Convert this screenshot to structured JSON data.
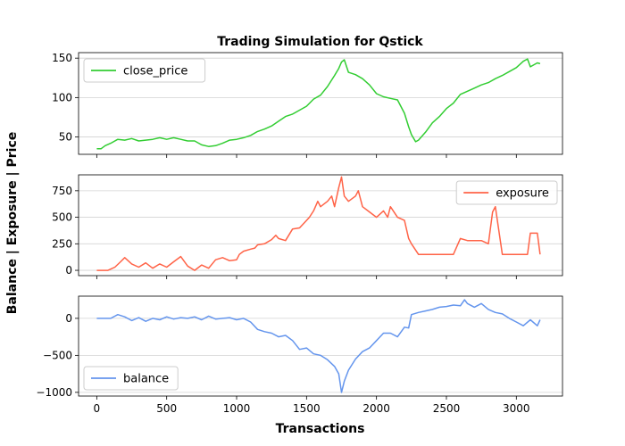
{
  "chart_data": {
    "type": "line",
    "title": "Trading Simulation for Qstick",
    "xlabel": "Transactions",
    "ylabel": "Balance | Exposure | Price",
    "xlim": [
      -130,
      3330
    ],
    "xticks": [
      0,
      500,
      1000,
      1500,
      2000,
      2500,
      3000
    ],
    "grid": "horizontal",
    "subplots": [
      {
        "series_name": "close_price",
        "color": "#32cd32",
        "legend_position": "upper-left",
        "ylim": [
          28,
          157
        ],
        "yticks": [
          50,
          100,
          150
        ],
        "x": [
          0,
          30,
          60,
          100,
          150,
          200,
          250,
          300,
          350,
          400,
          450,
          500,
          550,
          600,
          650,
          700,
          750,
          800,
          850,
          900,
          950,
          1000,
          1050,
          1100,
          1150,
          1200,
          1250,
          1300,
          1350,
          1400,
          1450,
          1500,
          1550,
          1600,
          1650,
          1700,
          1730,
          1750,
          1770,
          1800,
          1850,
          1900,
          1950,
          2000,
          2050,
          2100,
          2150,
          2200,
          2230,
          2250,
          2280,
          2300,
          2350,
          2400,
          2450,
          2500,
          2550,
          2600,
          2650,
          2700,
          2750,
          2800,
          2850,
          2900,
          2950,
          3000,
          3050,
          3080,
          3100,
          3150,
          3170
        ],
        "values": [
          35,
          35,
          39,
          42,
          47,
          46,
          48,
          45,
          46,
          47,
          49,
          47,
          49,
          47,
          45,
          45,
          40,
          38,
          39,
          42,
          46,
          47,
          49,
          52,
          57,
          60,
          64,
          70,
          76,
          79,
          84,
          89,
          98,
          103,
          114,
          128,
          137,
          145,
          148,
          132,
          129,
          124,
          116,
          105,
          101,
          99,
          97,
          80,
          63,
          53,
          44,
          46,
          56,
          68,
          76,
          86,
          93,
          104,
          108,
          112,
          116,
          119,
          124,
          128,
          133,
          138,
          146,
          149,
          139,
          144,
          143
        ]
      },
      {
        "series_name": "exposure",
        "color": "#ff6347",
        "legend_position": "upper-right",
        "ylim": [
          -50,
          900
        ],
        "yticks": [
          0,
          250,
          500,
          750
        ],
        "x": [
          0,
          80,
          130,
          170,
          200,
          250,
          300,
          350,
          400,
          450,
          500,
          550,
          600,
          650,
          700,
          750,
          800,
          850,
          900,
          950,
          1000,
          1020,
          1050,
          1100,
          1130,
          1150,
          1200,
          1250,
          1280,
          1300,
          1350,
          1400,
          1450,
          1500,
          1520,
          1550,
          1580,
          1600,
          1650,
          1680,
          1700,
          1730,
          1750,
          1770,
          1800,
          1850,
          1870,
          1900,
          1950,
          2000,
          2050,
          2080,
          2100,
          2150,
          2200,
          2230,
          2250,
          2300,
          2350,
          2400,
          2450,
          2500,
          2550,
          2600,
          2650,
          2700,
          2750,
          2800,
          2830,
          2850,
          2900,
          2950,
          3000,
          3050,
          3080,
          3100,
          3150,
          3170
        ],
        "values": [
          0,
          0,
          30,
          80,
          120,
          60,
          30,
          70,
          20,
          60,
          30,
          80,
          130,
          40,
          0,
          50,
          20,
          100,
          120,
          90,
          100,
          150,
          180,
          200,
          210,
          240,
          250,
          290,
          330,
          300,
          280,
          390,
          400,
          470,
          500,
          560,
          650,
          600,
          650,
          700,
          600,
          780,
          880,
          700,
          650,
          700,
          750,
          600,
          550,
          500,
          560,
          500,
          600,
          500,
          470,
          300,
          250,
          150,
          150,
          150,
          150,
          150,
          150,
          300,
          280,
          280,
          280,
          250,
          550,
          600,
          150,
          150,
          150,
          150,
          150,
          350,
          350,
          150
        ]
      },
      {
        "series_name": "balance",
        "color": "#6495ed",
        "legend_position": "lower-left",
        "ylim": [
          -1050,
          300
        ],
        "yticks": [
          -1000,
          -500,
          0
        ],
        "x": [
          0,
          100,
          150,
          200,
          250,
          300,
          350,
          400,
          450,
          500,
          550,
          600,
          650,
          700,
          750,
          800,
          850,
          900,
          950,
          1000,
          1050,
          1100,
          1150,
          1200,
          1250,
          1300,
          1350,
          1400,
          1450,
          1500,
          1550,
          1600,
          1650,
          1700,
          1730,
          1750,
          1770,
          1800,
          1850,
          1900,
          1950,
          2000,
          2050,
          2100,
          2150,
          2200,
          2230,
          2250,
          2300,
          2350,
          2400,
          2450,
          2500,
          2550,
          2600,
          2630,
          2650,
          2700,
          2750,
          2800,
          2850,
          2900,
          2950,
          3000,
          3050,
          3100,
          3150,
          3170
        ],
        "values": [
          0,
          0,
          50,
          20,
          -30,
          10,
          -40,
          0,
          -20,
          20,
          -10,
          10,
          0,
          20,
          -20,
          30,
          -10,
          0,
          10,
          -20,
          0,
          -50,
          -150,
          -180,
          -200,
          -250,
          -230,
          -300,
          -420,
          -400,
          -480,
          -500,
          -560,
          -650,
          -750,
          -1000,
          -850,
          -700,
          -550,
          -450,
          -400,
          -300,
          -200,
          -200,
          -250,
          -120,
          -130,
          50,
          80,
          100,
          120,
          150,
          160,
          180,
          170,
          250,
          200,
          150,
          200,
          120,
          80,
          60,
          0,
          -50,
          -100,
          -20,
          -100,
          -20
        ]
      }
    ]
  }
}
